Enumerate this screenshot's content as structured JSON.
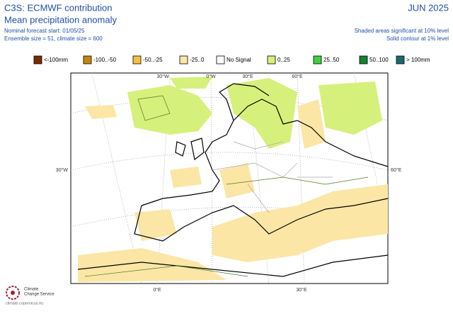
{
  "header": {
    "title": "C3S: ECMWF contribution",
    "subtitle": "Mean precipitation anomaly",
    "forecast_start": "Nominal forecast start: 01/05/25",
    "ensemble": "Ensemble size = 51, climate size = 600",
    "date": "JUN 2025",
    "significance": "Shaded areas significant at 10% level",
    "contour": "Solid contour at 1% level"
  },
  "legend": {
    "items": [
      {
        "label": "<-100mm",
        "color": "#7a2a00"
      },
      {
        "label": "-100..-50",
        "color": "#c8860a"
      },
      {
        "label": "-50..-25",
        "color": "#f5c040"
      },
      {
        "label": "-25..0",
        "color": "#fbe6a6"
      },
      {
        "label": "No Signal",
        "color": "#ffffff"
      },
      {
        "label": "0..25",
        "color": "#d6f07c"
      },
      {
        "label": "25..50",
        "color": "#3ed23e"
      },
      {
        "label": "50..100",
        "color": "#128232"
      },
      {
        "label": "> 100mm",
        "color": "#1a6a70"
      }
    ]
  },
  "map": {
    "top_labels": [
      "30°W",
      "0°W",
      "30°E",
      "60°E"
    ],
    "left_label": "30°W",
    "right_label": "60°E",
    "bottom_labels": [
      "0°E",
      "30°E"
    ]
  },
  "footer": {
    "service": [
      "Climate",
      "Change Service"
    ],
    "url": "climate.copernicus.eu"
  }
}
